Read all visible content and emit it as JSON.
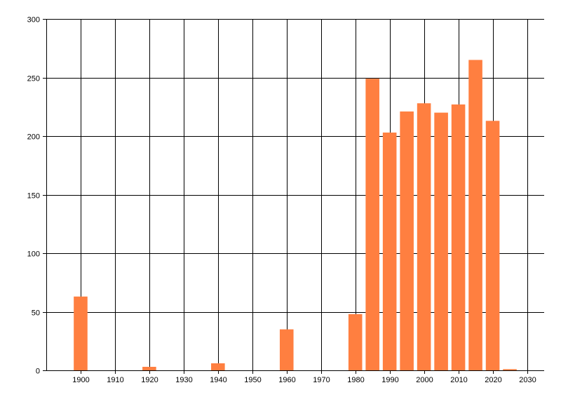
{
  "chart_data": {
    "type": "bar",
    "title": "",
    "xlabel": "",
    "ylabel": "",
    "x": [
      1900,
      1920,
      1940,
      1960,
      1980,
      1985,
      1990,
      1995,
      2000,
      2005,
      2010,
      2015,
      2020,
      2025
    ],
    "values": [
      63,
      3,
      6,
      35,
      48,
      249,
      203,
      221,
      228,
      220,
      227,
      265,
      213,
      1
    ],
    "xlim": [
      1890,
      2035
    ],
    "ylim": [
      0,
      300
    ],
    "xticks": [
      1900,
      1910,
      1920,
      1930,
      1940,
      1950,
      1960,
      1970,
      1980,
      1990,
      2000,
      2010,
      2020,
      2030
    ],
    "yticks": [
      0,
      50,
      100,
      150,
      200,
      250,
      300
    ],
    "grid": true,
    "legend": "none",
    "bar_width_years": 4,
    "colors": {
      "bar": "#FF7F40",
      "grid": "#000000",
      "axis": "#000000"
    }
  }
}
